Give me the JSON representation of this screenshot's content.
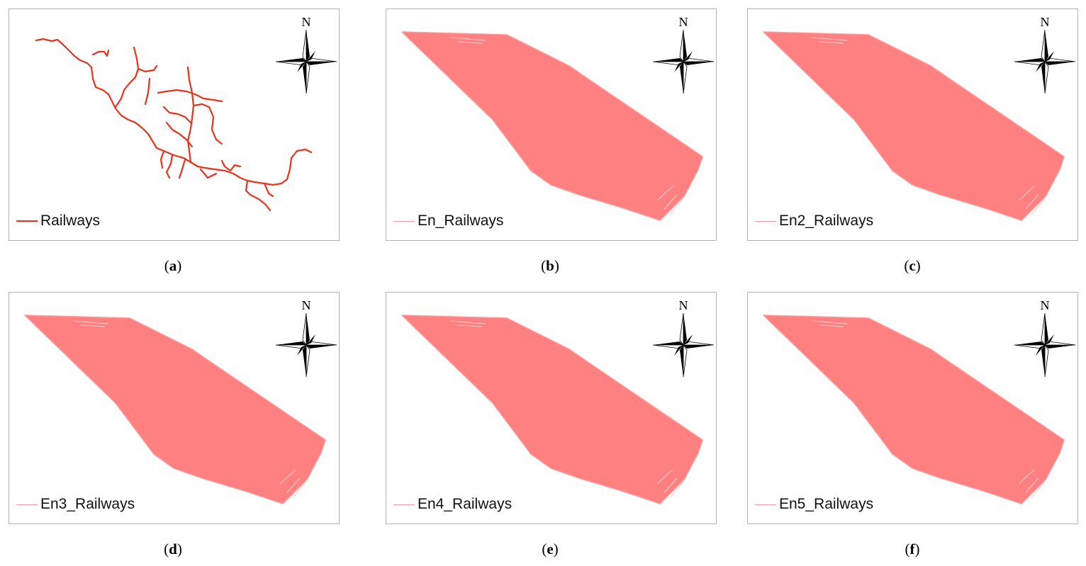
{
  "north_label": "N",
  "colors": {
    "railway_line": "#e8321e",
    "buffer_fill": "#ff8080",
    "buffer_legend": "#f4a0a0"
  },
  "panels": [
    {
      "id": "a",
      "legend": "Railways",
      "caption_letter": "a",
      "type": "lines"
    },
    {
      "id": "b",
      "legend": "En_Railways",
      "caption_letter": "b",
      "type": "buffer"
    },
    {
      "id": "c",
      "legend": "En2_Railways",
      "caption_letter": "c",
      "type": "buffer"
    },
    {
      "id": "d",
      "legend": "En3_Railways",
      "caption_letter": "d",
      "type": "buffer"
    },
    {
      "id": "e",
      "legend": "En4_Railways",
      "caption_letter": "e",
      "type": "buffer"
    },
    {
      "id": "f",
      "legend": "En5_Railways",
      "caption_letter": "f",
      "type": "buffer"
    }
  ]
}
